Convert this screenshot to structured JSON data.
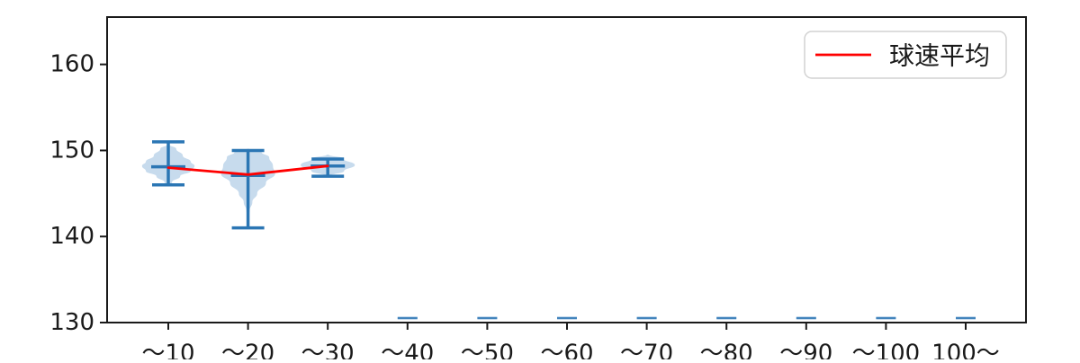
{
  "chart_data": {
    "type": "violin",
    "title": "",
    "xlabel": "",
    "ylabel": "",
    "categories": [
      "～10",
      "～20",
      "～30",
      "～40",
      "～50",
      "～60",
      "～70",
      "～80",
      "～90",
      "～100",
      "100～"
    ],
    "yticks": [
      130,
      140,
      150,
      160
    ],
    "ylim": [
      130,
      165.5
    ],
    "grid": false,
    "legend": {
      "label": "球速平均",
      "line_color": "#ff0000",
      "position": "upper right"
    },
    "mean_series": {
      "name": "球速平均",
      "categories": [
        "～10",
        "～20",
        "～30"
      ],
      "values": [
        148.0,
        147.2,
        148.2
      ]
    },
    "violins": [
      {
        "category": "～10",
        "empty": false,
        "min": 146,
        "max": 151,
        "median": 148.1,
        "mean": 148.0,
        "max_halfwidth_fraction": 0.33,
        "profile": [
          [
            150.7,
            0.03
          ],
          [
            150.2,
            0.3
          ],
          [
            149.4,
            0.55
          ],
          [
            148.7,
            0.85
          ],
          [
            148.2,
            1.0
          ],
          [
            147.6,
            0.85
          ],
          [
            147.0,
            0.45
          ],
          [
            146.3,
            0.14
          ],
          [
            145.9,
            0.02
          ]
        ]
      },
      {
        "category": "～20",
        "empty": false,
        "min": 141,
        "max": 150,
        "median": 147.1,
        "mean": 147.2,
        "max_halfwidth_fraction": 0.34,
        "profile": [
          [
            150.2,
            0.04
          ],
          [
            149.8,
            0.5
          ],
          [
            149.2,
            0.78
          ],
          [
            148.2,
            0.92
          ],
          [
            147.3,
            1.0
          ],
          [
            146.2,
            0.66
          ],
          [
            145.0,
            0.34
          ],
          [
            144.0,
            0.16
          ],
          [
            143.0,
            0.06
          ],
          [
            142.4,
            0.02
          ]
        ]
      },
      {
        "category": "～30",
        "empty": false,
        "min": 147,
        "max": 149,
        "median": 148.2,
        "mean": 148.2,
        "max_halfwidth_fraction": 0.34,
        "profile": [
          [
            149.5,
            0.04
          ],
          [
            149.1,
            0.55
          ],
          [
            148.3,
            1.0
          ],
          [
            147.6,
            0.6
          ],
          [
            147.0,
            0.05
          ]
        ]
      },
      {
        "category": "～40",
        "empty": true
      },
      {
        "category": "～50",
        "empty": true
      },
      {
        "category": "～60",
        "empty": true
      },
      {
        "category": "～70",
        "empty": true
      },
      {
        "category": "～80",
        "empty": true
      },
      {
        "category": "～90",
        "empty": true
      },
      {
        "category": "～100",
        "empty": true
      },
      {
        "category": "100～",
        "empty": true
      }
    ],
    "colors": {
      "violin_fill": "#c7dbed",
      "violin_line": "#2b76b4",
      "mean_line": "#ff0000",
      "axis": "#1a1a1a",
      "legend_border": "#d2d2d2",
      "background": "#ffffff"
    }
  }
}
